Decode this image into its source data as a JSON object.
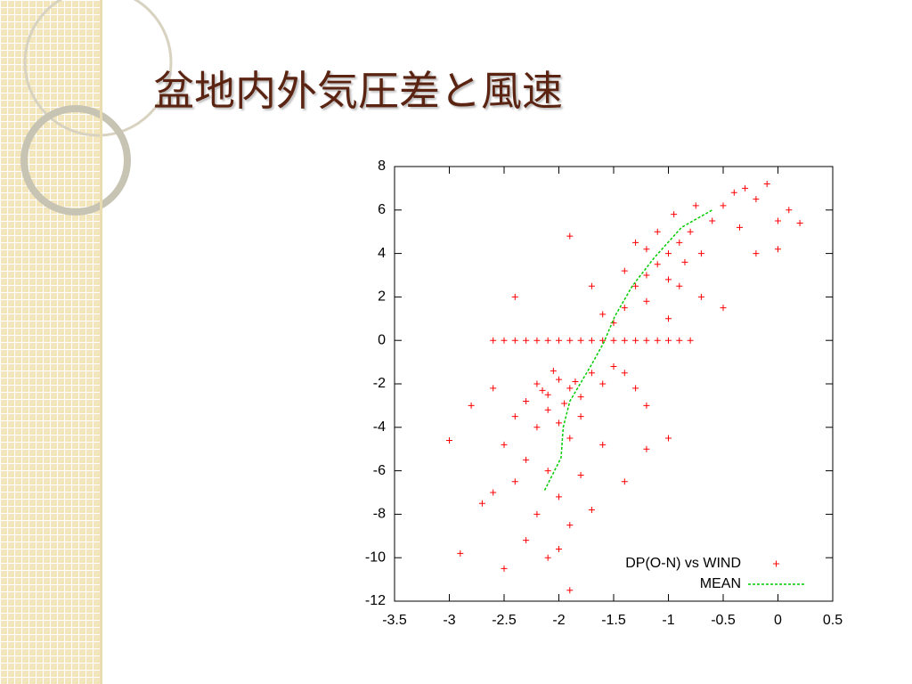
{
  "chart_data": {
    "type": "scatter",
    "title": "盆地内外気圧差と風速",
    "xlim": [
      -3.5,
      0.5
    ],
    "xticks": [
      -3.5,
      -3,
      -2.5,
      -2,
      -1.5,
      -1,
      -0.5,
      0,
      0.5
    ],
    "ylim": [
      -12,
      8
    ],
    "yticks": [
      -12,
      -10,
      -8,
      -6,
      -4,
      -2,
      0,
      2,
      4,
      6,
      8
    ],
    "legend": "lower right",
    "series": [
      {
        "name": "DP(O-N) vs WIND",
        "color": "#ff0000",
        "mark": "plus",
        "x": [
          -2.6,
          -2.5,
          -2.4,
          -2.3,
          -2.2,
          -2.1,
          -2.0,
          -1.9,
          -1.8,
          -1.7,
          -1.6,
          -1.5,
          -1.4,
          -1.3,
          -1.2,
          -1.1,
          -1.0,
          -0.9,
          -0.8,
          -2.2,
          -2.1,
          -2.0,
          -1.9,
          -1.8,
          -2.3,
          -2.1,
          -1.7,
          -1.6,
          -1.5,
          -2.4,
          -2.2,
          -2.0,
          -1.8,
          -1.9,
          -2.5,
          -2.3,
          -2.1,
          -2.4,
          -2.6,
          -2.0,
          -1.8,
          -2.2,
          -1.9,
          -2.3,
          -2.1,
          -2.5,
          -2.0,
          -2.9,
          -2.7,
          -3.0,
          -2.8,
          -2.6,
          -1.4,
          -1.2,
          -1.0,
          -1.2,
          -1.4,
          -1.7,
          -1.9,
          -1.6,
          -1.3,
          -2.05,
          -1.95,
          -1.85,
          -2.15,
          -1.4,
          -1.3,
          -1.2,
          -1.1,
          -1.0,
          -0.9,
          -0.8,
          -1.2,
          -1.0,
          -0.7,
          -0.6,
          -0.5,
          -0.4,
          -0.3,
          -0.2,
          -0.1,
          0.0,
          0.1,
          0.2,
          -1.5,
          -1.6,
          -1.7,
          -1.3,
          -1.1,
          -0.9,
          -0.7,
          -0.5,
          -0.2,
          0.0,
          -1.9,
          -2.4,
          -1.0,
          -1.4,
          -1.2,
          -0.85,
          -0.95,
          -0.75,
          -0.35
        ],
        "y": [
          0,
          0,
          0,
          0,
          0,
          0,
          0,
          0,
          0,
          0,
          0,
          0,
          0,
          0,
          0,
          0,
          0,
          0,
          0,
          -2,
          -2.5,
          -1.8,
          -2.2,
          -2.6,
          -2.8,
          -3.2,
          -1.5,
          -2.0,
          -1.2,
          -3.5,
          -4.0,
          -3.8,
          -3.5,
          -4.5,
          -4.8,
          -5.5,
          -6.0,
          -6.5,
          -7.0,
          -7.2,
          -6.2,
          -8.0,
          -8.5,
          -9.2,
          -10.0,
          -10.5,
          -9.6,
          -9.8,
          -7.5,
          -4.6,
          -3.0,
          -2.2,
          -1.5,
          -3.0,
          -4.5,
          -5.0,
          -6.5,
          -7.8,
          -11.5,
          -4.8,
          -2.2,
          -1.4,
          -2.9,
          -1.9,
          -2.3,
          1.5,
          2.5,
          3.0,
          3.5,
          4.0,
          4.5,
          5.0,
          4.2,
          2.8,
          4.0,
          5.5,
          6.2,
          6.8,
          7.0,
          6.5,
          7.2,
          5.5,
          6.0,
          5.4,
          0.8,
          1.2,
          2.5,
          4.5,
          5.0,
          2.5,
          2.0,
          1.5,
          4.0,
          4.2,
          4.8,
          2.0,
          1.0,
          3.2,
          1.8,
          3.6,
          5.8,
          6.2,
          5.2
        ]
      },
      {
        "name": "MEAN",
        "color": "#00cc00",
        "mark": "dashed-line",
        "x": [
          -2.13,
          -1.98,
          -1.96,
          -1.9,
          -1.7,
          -1.59,
          -1.49,
          -1.33,
          -1.13,
          -0.88,
          -0.6
        ],
        "y": [
          -6.9,
          -5.4,
          -4.0,
          -2.8,
          -1.1,
          -0.1,
          1.1,
          2.5,
          3.8,
          5.2,
          6.0
        ]
      }
    ]
  }
}
